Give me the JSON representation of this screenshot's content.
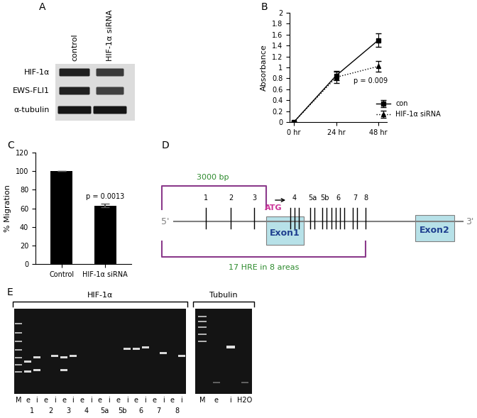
{
  "panel_labels": [
    "A",
    "B",
    "C",
    "D",
    "E"
  ],
  "blot": {
    "lanes": [
      "control",
      "HIF-1α siRNA"
    ],
    "rows": [
      "HIF-1α",
      "EWS-FLI1",
      "α-tubulin"
    ]
  },
  "chart_data": [
    {
      "type": "line",
      "categories": [
        "0 hr",
        "24 hr",
        "48 hr"
      ],
      "y_label": "Absorbance",
      "ylim": [
        0,
        2
      ],
      "yticks": [
        0,
        0.2,
        0.4,
        0.6,
        0.8,
        1,
        1.2,
        1.4,
        1.6,
        1.8,
        2
      ],
      "legend": "lower right",
      "annotations": [
        "p = 0.009"
      ],
      "series": [
        {
          "name": "con",
          "color": "#000000",
          "marker": "square",
          "line_style": "solid",
          "values": [
            0,
            0.85,
            1.5
          ],
          "errors": [
            0,
            0.08,
            0.12
          ]
        },
        {
          "name": "HIF-1α siRNA",
          "color": "#000000",
          "marker": "triangle",
          "line_style": "dotted",
          "values": [
            0,
            0.82,
            1.02
          ],
          "errors": [
            0,
            0.1,
            0.1
          ]
        }
      ]
    },
    {
      "type": "bar",
      "categories": [
        "Control",
        "HIF-1α siRNA"
      ],
      "values": [
        100,
        63
      ],
      "errors": [
        0,
        2
      ],
      "y_label": "% Migration",
      "ylim": [
        0,
        120
      ],
      "yticks": [
        0,
        20,
        40,
        60,
        80,
        100,
        120
      ],
      "color": "#000000",
      "annotations": [
        "p = 0.0013"
      ]
    }
  ],
  "diagram": {
    "span_label": "3000 bp",
    "region_label": "17 HRE in 8 areas",
    "start_codon": "ATG",
    "five_prime": "5'",
    "three_prime": "3'",
    "exons": [
      "Exon1",
      "Exon2"
    ],
    "hre_areas": [
      {
        "label": "1",
        "count": 1
      },
      {
        "label": "2",
        "count": 1
      },
      {
        "label": "3",
        "count": 1
      },
      {
        "label": "4",
        "count": 3
      },
      {
        "label": "5a",
        "count": 2
      },
      {
        "label": "5b",
        "count": 2
      },
      {
        "label": "6",
        "count": 4
      },
      {
        "label": "7",
        "count": 2
      },
      {
        "label": "8",
        "count": 1
      }
    ]
  },
  "gel": {
    "title": "HIF-1α",
    "marker_lane": "M",
    "pair_lanes": [
      "e",
      "i"
    ],
    "groups": [
      "1",
      "2",
      "3",
      "4",
      "5a",
      "5b",
      "6",
      "7",
      "8"
    ],
    "control_title": "Tubulin",
    "control_lanes": [
      "M",
      "e",
      "i",
      "H2O"
    ]
  }
}
